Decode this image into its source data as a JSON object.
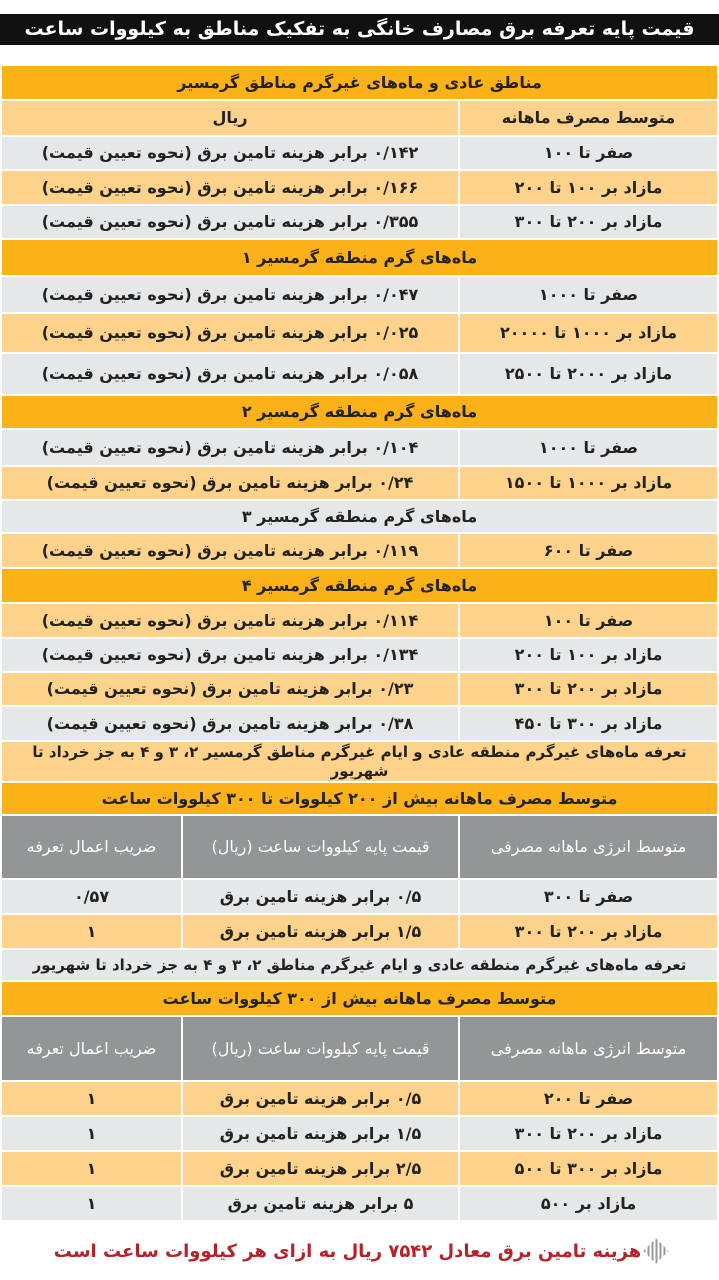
{
  "title": "قیمت پایه تعرفه برق مصارف خانگی به تفکیک مناطق به کیلووات ساعت",
  "colors": {
    "orange": "#fbb118",
    "light": "#fdd38c",
    "gray": "#e6e7e8",
    "dark": "#939598",
    "footer": "#b5232a"
  },
  "blocks": [
    {
      "type": "section",
      "shade": "orange",
      "text": "مناطق عادی و ماه‌های غیرگرم مناطق گرمسیر"
    },
    {
      "type": "row2",
      "shade": "light",
      "cells": [
        "متوسط مصرف ماهانه",
        "ریال"
      ]
    },
    {
      "type": "row2",
      "shade": "gray",
      "cells": [
        "صفر تا ۱۰۰",
        "۰/۱۴۲ برابر هزینه تامین برق (نحوه تعیین قیمت)"
      ]
    },
    {
      "type": "row2",
      "shade": "light",
      "cells": [
        "مازاد بر ۱۰۰ تا ۲۰۰",
        "۰/۱۶۶ برابر هزینه تامین برق (نحوه تعیین قیمت)"
      ]
    },
    {
      "type": "row2",
      "shade": "gray",
      "cells": [
        "مازاد بر ۲۰۰ تا ۳۰۰",
        "۰/۳۵۵ برابر هزینه تامین برق (نحوه تعیین قیمت)"
      ]
    },
    {
      "type": "section",
      "shade": "orange",
      "text": "ماه‌های گرم منطقه گرمسیر ۱"
    },
    {
      "type": "row2",
      "shade": "gray",
      "cells": [
        "صفر تا ۱۰۰۰",
        "۰/۰۴۷ برابر هزینه تامین برق (نحوه تعیین قیمت)"
      ]
    },
    {
      "type": "row2",
      "shade": "light",
      "cells": [
        "مازاد بر ۱۰۰۰ تا ۲۰۰۰۰",
        "۰/۰۲۵ برابر هزینه تامین برق (نحوه تعیین قیمت)"
      ]
    },
    {
      "type": "row2",
      "shade": "gray",
      "cells": [
        "مازاد بر ۲۰۰۰ تا ۲۵۰۰",
        "۰/۰۵۸ برابر هزینه تامین برق (نحوه تعیین قیمت)"
      ]
    },
    {
      "type": "section",
      "shade": "orange",
      "text": "ماه‌های گرم منطقه گرمسیر ۲"
    },
    {
      "type": "row2",
      "shade": "gray",
      "cells": [
        "صفر تا ۱۰۰۰",
        "۰/۱۰۴ برابر هزینه تامین برق (نحوه تعیین قیمت)"
      ]
    },
    {
      "type": "row2",
      "shade": "light",
      "cells": [
        "مازاد بر ۱۰۰۰ تا ۱۵۰۰",
        "۰/۲۴ برابر هزینه تامین برق (نحوه تعیین قیمت)"
      ]
    },
    {
      "type": "section",
      "shade": "gray",
      "text": "ماه‌های گرم منطقه گرمسیر ۳"
    },
    {
      "type": "row2",
      "shade": "light",
      "cells": [
        "صفر تا ۶۰۰",
        "۰/۱۱۹ برابر هزینه تامین برق (نحوه تعیین قیمت)"
      ]
    },
    {
      "type": "section",
      "shade": "orange",
      "text": "ماه‌های گرم منطقه گرمسیر ۴"
    },
    {
      "type": "row2",
      "shade": "light",
      "cells": [
        "صفر تا ۱۰۰",
        "۰/۱۱۴ برابر هزینه تامین برق (نحوه تعیین قیمت)"
      ]
    },
    {
      "type": "row2",
      "shade": "gray",
      "cells": [
        "مازاد بر ۱۰۰ تا ۲۰۰",
        "۰/۱۳۴ برابر هزینه تامین برق (نحوه تعیین قیمت)"
      ]
    },
    {
      "type": "row2",
      "shade": "light",
      "cells": [
        "مازاد بر ۲۰۰ تا ۳۰۰",
        "۰/۲۳ برابر هزینه تامین برق (نحوه تعیین قیمت)"
      ]
    },
    {
      "type": "row2",
      "shade": "gray",
      "cells": [
        "مازاد بر ۳۰۰ تا ۴۵۰",
        "۰/۳۸ برابر هزینه تامین برق (نحوه تعیین قیمت)"
      ]
    },
    {
      "type": "note",
      "shade": "light",
      "text": "تعرفه ماه‌های غیرگرم منطقه عادی و ایام غیرگرم مناطق گرمسیر ۲، ۳ و ۴ به جز خرداد تا شهریور"
    },
    {
      "type": "section",
      "shade": "orange",
      "text": "متوسط مصرف ماهانه بیش از ۲۰۰ کیلووات تا ۳۰۰ کیلووات ساعت"
    },
    {
      "type": "header3",
      "shade": "dark",
      "cells": [
        "متوسط انرژی ماهانه مصرفی",
        "قیمت پایه کیلووات ساعت (ریال)",
        "ضریب اعمال تعرفه"
      ]
    },
    {
      "type": "row3",
      "shade": "gray",
      "cells": [
        "صفر تا ۳۰۰",
        "۰/۵ برابر هزینه تامین برق",
        "۰/۵۷"
      ]
    },
    {
      "type": "row3",
      "shade": "light",
      "cells": [
        "مازاد بر ۲۰۰ تا ۳۰۰",
        "۱/۵ برابر هزینه تامین برق",
        "۱"
      ]
    },
    {
      "type": "note",
      "shade": "gray",
      "text": "تعرفه ماه‌های غیرگرم منطقه عادی و ایام غیرگرم مناطق ۲، ۳ و ۴ به جز خرداد تا شهریور"
    },
    {
      "type": "section",
      "shade": "orange",
      "text": "متوسط مصرف ماهانه بیش از ۳۰۰ کیلووات ساعت"
    },
    {
      "type": "header3",
      "shade": "dark",
      "cells": [
        "متوسط انرژی ماهانه مصرفی",
        "قیمت پایه کیلووات ساعت (ریال)",
        "ضریب اعمال تعرفه"
      ]
    },
    {
      "type": "row3",
      "shade": "light",
      "cells": [
        "صفر تا ۲۰۰",
        "۰/۵ برابر هزینه تامین برق",
        "۱"
      ]
    },
    {
      "type": "row3",
      "shade": "gray",
      "cells": [
        "مازاد بر ۲۰۰ تا ۳۰۰",
        "۱/۵ برابر هزینه تامین برق",
        "۱"
      ]
    },
    {
      "type": "row3",
      "shade": "light",
      "cells": [
        "مازاد بر ۳۰۰ تا ۵۰۰",
        "۲/۵ برابر هزینه تامین برق",
        "۱"
      ]
    },
    {
      "type": "row3",
      "shade": "gray",
      "cells": [
        "مازاد بر ۵۰۰",
        "۵ برابر هزینه تامین برق",
        "۱"
      ]
    }
  ],
  "footer": {
    "icon": "diamond-pattern-icon",
    "text": "هزینه تامین برق معادل ۷۵۴۲ ریال به ازای هر کیلووات ساعت است"
  }
}
